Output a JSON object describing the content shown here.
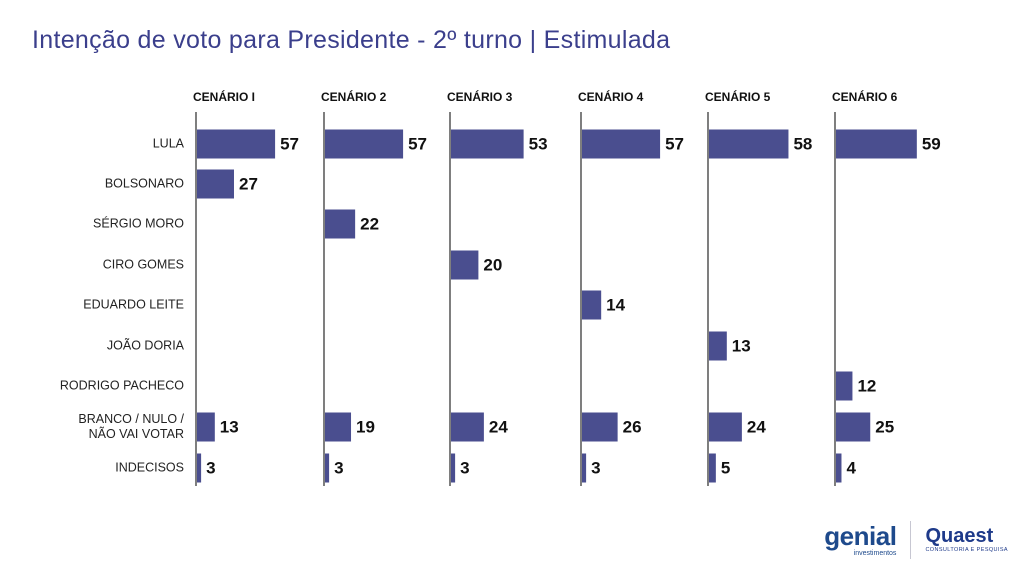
{
  "page_title": "Intenção de voto para Presidente - 2º turno | Estimulada",
  "logos": {
    "genial_word": "genial",
    "genial_sub": "investimentos",
    "quaest_word": "Quaest",
    "quaest_sub": "CONSULTORIA E PESQUISA"
  },
  "colors": {
    "bar": "#4a4e8f",
    "title": "#3b3f8c",
    "text": "#222222"
  },
  "chart_data": {
    "type": "bar",
    "orientation": "horizontal",
    "title": "Intenção de voto para Presidente - 2º turno | Estimulada",
    "categories": [
      "LULA",
      "BOLSONARO",
      "SÉRGIO MORO",
      "CIRO GOMES",
      "EDUARDO LEITE",
      "JOÃO DORIA",
      "RODRIGO PACHECO",
      "BRANCO / NULO / NÃO VAI VOTAR",
      "INDECISOS"
    ],
    "category_lines": [
      [
        "LULA"
      ],
      [
        "BOLSONARO"
      ],
      [
        "SÉRGIO MORO"
      ],
      [
        "CIRO GOMES"
      ],
      [
        "EDUARDO LEITE"
      ],
      [
        "JOÃO DORIA"
      ],
      [
        "RODRIGO PACHECO"
      ],
      [
        "BRANCO / NULO /",
        "NÃO VAI VOTAR"
      ],
      [
        "INDECISOS"
      ]
    ],
    "series": [
      {
        "name": "CENÁRIO I",
        "values": [
          57,
          27,
          null,
          null,
          null,
          null,
          null,
          13,
          3
        ]
      },
      {
        "name": "CENÁRIO 2",
        "values": [
          57,
          null,
          22,
          null,
          null,
          null,
          null,
          19,
          3
        ]
      },
      {
        "name": "CENÁRIO 3",
        "values": [
          53,
          null,
          null,
          20,
          null,
          null,
          null,
          24,
          3
        ]
      },
      {
        "name": "CENÁRIO 4",
        "values": [
          57,
          null,
          null,
          null,
          14,
          null,
          null,
          26,
          3
        ]
      },
      {
        "name": "CENÁRIO 5",
        "values": [
          58,
          null,
          null,
          null,
          null,
          13,
          null,
          24,
          5
        ]
      },
      {
        "name": "CENÁRIO 6",
        "values": [
          59,
          null,
          null,
          null,
          null,
          null,
          12,
          25,
          4
        ]
      }
    ],
    "xlim": [
      0,
      100
    ],
    "grid": false,
    "legend": "none"
  }
}
